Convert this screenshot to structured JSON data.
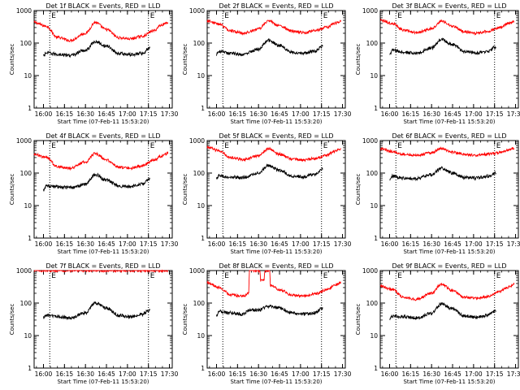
{
  "chart_data": [
    {
      "type": "line",
      "title": "Det 1f BLACK = Events, RED = LLD",
      "xlabel": "Start Time (07-Feb-11 15:53:20)",
      "ylabel": "Counts/sec",
      "yscale": "log",
      "ylim": [
        1,
        1000
      ],
      "ytick_labels": [
        "1",
        "10",
        "100",
        "1000"
      ],
      "xlim": [
        "15:53:20",
        "17:32:00"
      ],
      "xtick_labels": [
        "16:00",
        "16:15",
        "16:30",
        "16:45",
        "17:00",
        "17:15",
        "17:30"
      ],
      "vlines": [
        "16:04:30",
        "17:15:00"
      ],
      "vline_labels": [
        "E",
        "E"
      ],
      "series": [
        {
          "color": "#ff0000",
          "x": [
            "15:53:20",
            "16:02:00",
            "16:10:00",
            "16:19:00",
            "16:30:00",
            "16:37:00",
            "16:45:00",
            "16:54:00",
            "17:02:00",
            "17:10:00",
            "17:19:00",
            "17:24:00",
            "17:29:00"
          ],
          "values": [
            430,
            330,
            150,
            120,
            200,
            430,
            260,
            145,
            135,
            160,
            240,
            360,
            430
          ]
        },
        {
          "color": "#000000",
          "x": [
            "16:00:00",
            "16:02:00",
            "16:10:00",
            "16:19:00",
            "16:30:00",
            "16:37:00",
            "16:45:00",
            "16:54:00",
            "17:02:00",
            "17:10:00",
            "17:16:00"
          ],
          "values": [
            40,
            50,
            45,
            42,
            60,
            110,
            80,
            48,
            44,
            48,
            70
          ]
        }
      ]
    },
    {
      "type": "line",
      "title": "Det 2f BLACK = Events, RED = LLD",
      "xlabel": "Start Time (07-Feb-11 15:53:20)",
      "ylabel": "Counts/sec",
      "yscale": "log",
      "ylim": [
        1,
        1000
      ],
      "ytick_labels": [
        "1",
        "10",
        "100",
        "1000"
      ],
      "xlim": [
        "15:53:20",
        "17:32:00"
      ],
      "xtick_labels": [
        "16:00",
        "16:15",
        "16:30",
        "16:45",
        "17:00",
        "17:15",
        "17:30"
      ],
      "vlines": [
        "16:04:30",
        "17:15:00"
      ],
      "vline_labels": [
        "E",
        "E"
      ],
      "series": [
        {
          "color": "#ff0000",
          "x": [
            "15:53:20",
            "16:02:00",
            "16:10:00",
            "16:19:00",
            "16:30:00",
            "16:37:00",
            "16:45:00",
            "16:54:00",
            "17:02:00",
            "17:10:00",
            "17:19:00",
            "17:24:00",
            "17:29:00"
          ],
          "values": [
            480,
            380,
            240,
            200,
            270,
            480,
            340,
            230,
            210,
            240,
            310,
            400,
            460
          ]
        },
        {
          "color": "#000000",
          "x": [
            "16:00:00",
            "16:02:00",
            "16:10:00",
            "16:19:00",
            "16:30:00",
            "16:37:00",
            "16:45:00",
            "16:54:00",
            "17:02:00",
            "17:10:00",
            "17:16:00"
          ],
          "values": [
            45,
            55,
            48,
            45,
            65,
            120,
            85,
            52,
            48,
            55,
            80
          ]
        }
      ]
    },
    {
      "type": "line",
      "title": "Det 3f BLACK = Events, RED = LLD",
      "xlabel": "Start Time (07-Feb-11 15:53:20)",
      "ylabel": "Counts/sec",
      "yscale": "log",
      "ylim": [
        1,
        1000
      ],
      "ytick_labels": [
        "1",
        "10",
        "100",
        "1000"
      ],
      "xlim": [
        "15:53:20",
        "17:32:00"
      ],
      "xtick_labels": [
        "16:00",
        "16:15",
        "16:30",
        "16:45",
        "17:00",
        "17:15",
        "17:30"
      ],
      "vlines": [
        "16:04:30",
        "17:15:00"
      ],
      "vline_labels": [
        "E",
        "E"
      ],
      "series": [
        {
          "color": "#ff0000",
          "x": [
            "15:53:20",
            "16:02:00",
            "16:10:00",
            "16:19:00",
            "16:30:00",
            "16:37:00",
            "16:45:00",
            "16:54:00",
            "17:02:00",
            "17:10:00",
            "17:19:00",
            "17:24:00",
            "17:29:00"
          ],
          "values": [
            500,
            400,
            250,
            210,
            280,
            470,
            330,
            220,
            200,
            230,
            300,
            390,
            460
          ]
        },
        {
          "color": "#000000",
          "x": [
            "16:00:00",
            "16:02:00",
            "16:10:00",
            "16:19:00",
            "16:30:00",
            "16:37:00",
            "16:45:00",
            "16:54:00",
            "17:02:00",
            "17:10:00",
            "17:16:00"
          ],
          "values": [
            45,
            60,
            52,
            48,
            70,
            130,
            90,
            55,
            50,
            55,
            75
          ]
        }
      ]
    },
    {
      "type": "line",
      "title": "Det 4f BLACK = Events, RED = LLD",
      "xlabel": "Start Time (07-Feb-11 15:53:20)",
      "ylabel": "Counts/sec",
      "yscale": "log",
      "ylim": [
        1,
        1000
      ],
      "ytick_labels": [
        "1",
        "10",
        "100",
        "1000"
      ],
      "xlim": [
        "15:53:20",
        "17:32:00"
      ],
      "xtick_labels": [
        "16:00",
        "16:15",
        "16:30",
        "16:45",
        "17:00",
        "17:15",
        "17:30"
      ],
      "vlines": [
        "16:04:30",
        "17:15:00"
      ],
      "vline_labels": [
        "E",
        "E"
      ],
      "series": [
        {
          "color": "#ff0000",
          "x": [
            "15:53:20",
            "16:02:00",
            "16:10:00",
            "16:19:00",
            "16:30:00",
            "16:37:00",
            "16:45:00",
            "16:54:00",
            "17:02:00",
            "17:10:00",
            "17:19:00",
            "17:24:00",
            "17:29:00"
          ],
          "values": [
            380,
            300,
            160,
            140,
            220,
            400,
            250,
            150,
            140,
            165,
            250,
            330,
            400
          ]
        },
        {
          "color": "#000000",
          "x": [
            "16:00:00",
            "16:02:00",
            "16:10:00",
            "16:19:00",
            "16:30:00",
            "16:37:00",
            "16:45:00",
            "16:54:00",
            "17:02:00",
            "17:10:00",
            "17:16:00"
          ],
          "values": [
            30,
            40,
            38,
            35,
            45,
            90,
            60,
            40,
            38,
            45,
            65
          ]
        }
      ]
    },
    {
      "type": "line",
      "title": "Det 5f BLACK = Events, RED = LLD",
      "xlabel": "Start Time (07-Feb-11 15:53:20)",
      "ylabel": "Counts/sec",
      "yscale": "log",
      "ylim": [
        1,
        1000
      ],
      "ytick_labels": [
        "1",
        "10",
        "100",
        "1000"
      ],
      "xlim": [
        "15:53:20",
        "17:32:00"
      ],
      "xtick_labels": [
        "16:00",
        "16:15",
        "16:30",
        "16:45",
        "17:00",
        "17:15",
        "17:30"
      ],
      "vlines": [
        "16:04:30",
        "17:15:00"
      ],
      "vline_labels": [
        "E",
        "E"
      ],
      "series": [
        {
          "color": "#ff0000",
          "x": [
            "15:53:20",
            "16:02:00",
            "16:10:00",
            "16:19:00",
            "16:30:00",
            "16:37:00",
            "16:45:00",
            "16:54:00",
            "17:02:00",
            "17:10:00",
            "17:19:00",
            "17:24:00",
            "17:29:00"
          ],
          "values": [
            620,
            480,
            300,
            260,
            340,
            560,
            380,
            270,
            250,
            280,
            360,
            460,
            560
          ]
        },
        {
          "color": "#000000",
          "x": [
            "16:00:00",
            "16:02:00",
            "16:10:00",
            "16:19:00",
            "16:30:00",
            "16:37:00",
            "16:45:00",
            "16:54:00",
            "17:02:00",
            "17:10:00",
            "17:16:00"
          ],
          "values": [
            70,
            85,
            75,
            72,
            100,
            170,
            120,
            80,
            78,
            90,
            130
          ]
        }
      ]
    },
    {
      "type": "line",
      "title": "Det 6f BLACK = Events, RED = LLD",
      "xlabel": "Start Time (07-Feb-11 15:53:20)",
      "ylabel": "Counts/sec",
      "yscale": "log",
      "ylim": [
        1,
        1000
      ],
      "ytick_labels": [
        "1",
        "10",
        "100",
        "1000"
      ],
      "xlim": [
        "15:53:20",
        "17:32:00"
      ],
      "xtick_labels": [
        "16:00",
        "16:15",
        "16:30",
        "16:45",
        "17:00",
        "17:15",
        "17:30"
      ],
      "vlines": [
        "16:04:30",
        "17:15:00"
      ],
      "vline_labels": [
        "E",
        "E"
      ],
      "series": [
        {
          "color": "#ff0000",
          "x": [
            "15:53:20",
            "16:02:00",
            "16:10:00",
            "16:19:00",
            "16:30:00",
            "16:37:00",
            "16:45:00",
            "16:54:00",
            "17:02:00",
            "17:10:00",
            "17:19:00",
            "17:24:00",
            "17:29:00"
          ],
          "values": [
            560,
            460,
            380,
            350,
            420,
            560,
            440,
            370,
            350,
            380,
            430,
            500,
            580
          ]
        },
        {
          "color": "#000000",
          "x": [
            "16:00:00",
            "16:02:00",
            "16:10:00",
            "16:19:00",
            "16:30:00",
            "16:37:00",
            "16:45:00",
            "16:54:00",
            "17:02:00",
            "17:10:00",
            "17:16:00"
          ],
          "values": [
            60,
            80,
            70,
            68,
            90,
            140,
            100,
            72,
            70,
            80,
            100
          ]
        }
      ]
    },
    {
      "type": "line",
      "title": "Det 7f BLACK = Events, RED = LLD",
      "xlabel": "Start Time (07-Feb-11 15:53:20)",
      "ylabel": "Counts/sec",
      "yscale": "log",
      "ylim": [
        1,
        1000
      ],
      "ytick_labels": [
        "1",
        "10",
        "100",
        "1000"
      ],
      "xlim": [
        "15:53:20",
        "17:32:00"
      ],
      "xtick_labels": [
        "16:00",
        "16:15",
        "16:30",
        "16:45",
        "17:00",
        "17:15",
        "17:30"
      ],
      "vlines": [
        "16:04:30",
        "17:15:00"
      ],
      "vline_labels": [
        "E",
        "E"
      ],
      "series": [
        {
          "color": "#ff0000",
          "x": [
            "15:53:20",
            "16:10:00",
            "16:30:00",
            "16:45:00",
            "17:00:00",
            "17:15:00",
            "17:29:00"
          ],
          "values": [
            1000,
            1000,
            1000,
            1000,
            1000,
            1000,
            1000
          ]
        },
        {
          "color": "#000000",
          "x": [
            "16:00:00",
            "16:02:00",
            "16:10:00",
            "16:19:00",
            "16:30:00",
            "16:37:00",
            "16:45:00",
            "16:54:00",
            "17:02:00",
            "17:10:00",
            "17:16:00"
          ],
          "values": [
            35,
            42,
            38,
            35,
            50,
            100,
            70,
            42,
            38,
            45,
            60
          ]
        }
      ]
    },
    {
      "type": "line",
      "title": "Det 8f BLACK = Events, RED = LLD",
      "xlabel": "Start Time (07-Feb-11 15:53:20)",
      "ylabel": "Counts/sec",
      "yscale": "log",
      "ylim": [
        1,
        1000
      ],
      "ytick_labels": [
        "1",
        "10",
        "100",
        "1000"
      ],
      "xlim": [
        "15:53:20",
        "17:32:00"
      ],
      "xtick_labels": [
        "16:00",
        "16:15",
        "16:30",
        "16:45",
        "17:00",
        "17:15",
        "17:30"
      ],
      "vlines": [
        "16:04:30",
        "17:15:00"
      ],
      "vline_labels": [
        "E",
        "E"
      ],
      "series": [
        {
          "color": "#ff0000",
          "x": [
            "15:53:20",
            "16:02:00",
            "16:10:00",
            "16:19:00",
            "16:23:00",
            "16:23:30",
            "16:31:00",
            "16:31:30",
            "16:34:00",
            "16:34:30",
            "16:38:00",
            "16:38:30",
            "16:45:00",
            "16:54:00",
            "17:02:00",
            "17:10:00",
            "17:19:00",
            "17:24:00",
            "17:29:00"
          ],
          "values": [
            420,
            300,
            180,
            160,
            200,
            1000,
            1000,
            500,
            500,
            1000,
            1000,
            350,
            260,
            175,
            165,
            190,
            260,
            340,
            420
          ]
        },
        {
          "color": "#000000",
          "x": [
            "16:00:00",
            "16:02:00",
            "16:10:00",
            "16:19:00",
            "16:23:00",
            "16:30:00",
            "16:37:00",
            "16:45:00",
            "16:54:00",
            "17:02:00",
            "17:10:00",
            "17:16:00"
          ],
          "values": [
            40,
            55,
            50,
            45,
            60,
            60,
            80,
            70,
            50,
            45,
            50,
            70
          ]
        }
      ]
    },
    {
      "type": "line",
      "title": "Det 9f BLACK = Events, RED = LLD",
      "xlabel": "Start Time (07-Feb-11 15:53:20)",
      "ylabel": "Counts/sec",
      "yscale": "log",
      "ylim": [
        1,
        1000
      ],
      "ytick_labels": [
        "1",
        "10",
        "100",
        "1000"
      ],
      "xlim": [
        "15:53:20",
        "17:32:00"
      ],
      "xtick_labels": [
        "16:00",
        "16:15",
        "16:30",
        "16:45",
        "17:00",
        "17:15",
        "17:30"
      ],
      "vlines": [
        "16:04:30",
        "17:15:00"
      ],
      "vline_labels": [
        "E",
        "E"
      ],
      "series": [
        {
          "color": "#ff0000",
          "x": [
            "15:53:20",
            "16:02:00",
            "16:10:00",
            "16:19:00",
            "16:30:00",
            "16:37:00",
            "16:45:00",
            "16:54:00",
            "17:02:00",
            "17:10:00",
            "17:19:00",
            "17:24:00",
            "17:29:00"
          ],
          "values": [
            340,
            260,
            150,
            130,
            200,
            380,
            240,
            150,
            140,
            160,
            230,
            300,
            370
          ]
        },
        {
          "color": "#000000",
          "x": [
            "16:00:00",
            "16:02:00",
            "16:10:00",
            "16:19:00",
            "16:30:00",
            "16:37:00",
            "16:45:00",
            "16:54:00",
            "17:02:00",
            "17:10:00",
            "17:16:00"
          ],
          "values": [
            30,
            40,
            38,
            35,
            48,
            95,
            65,
            40,
            36,
            42,
            58
          ]
        }
      ]
    }
  ]
}
